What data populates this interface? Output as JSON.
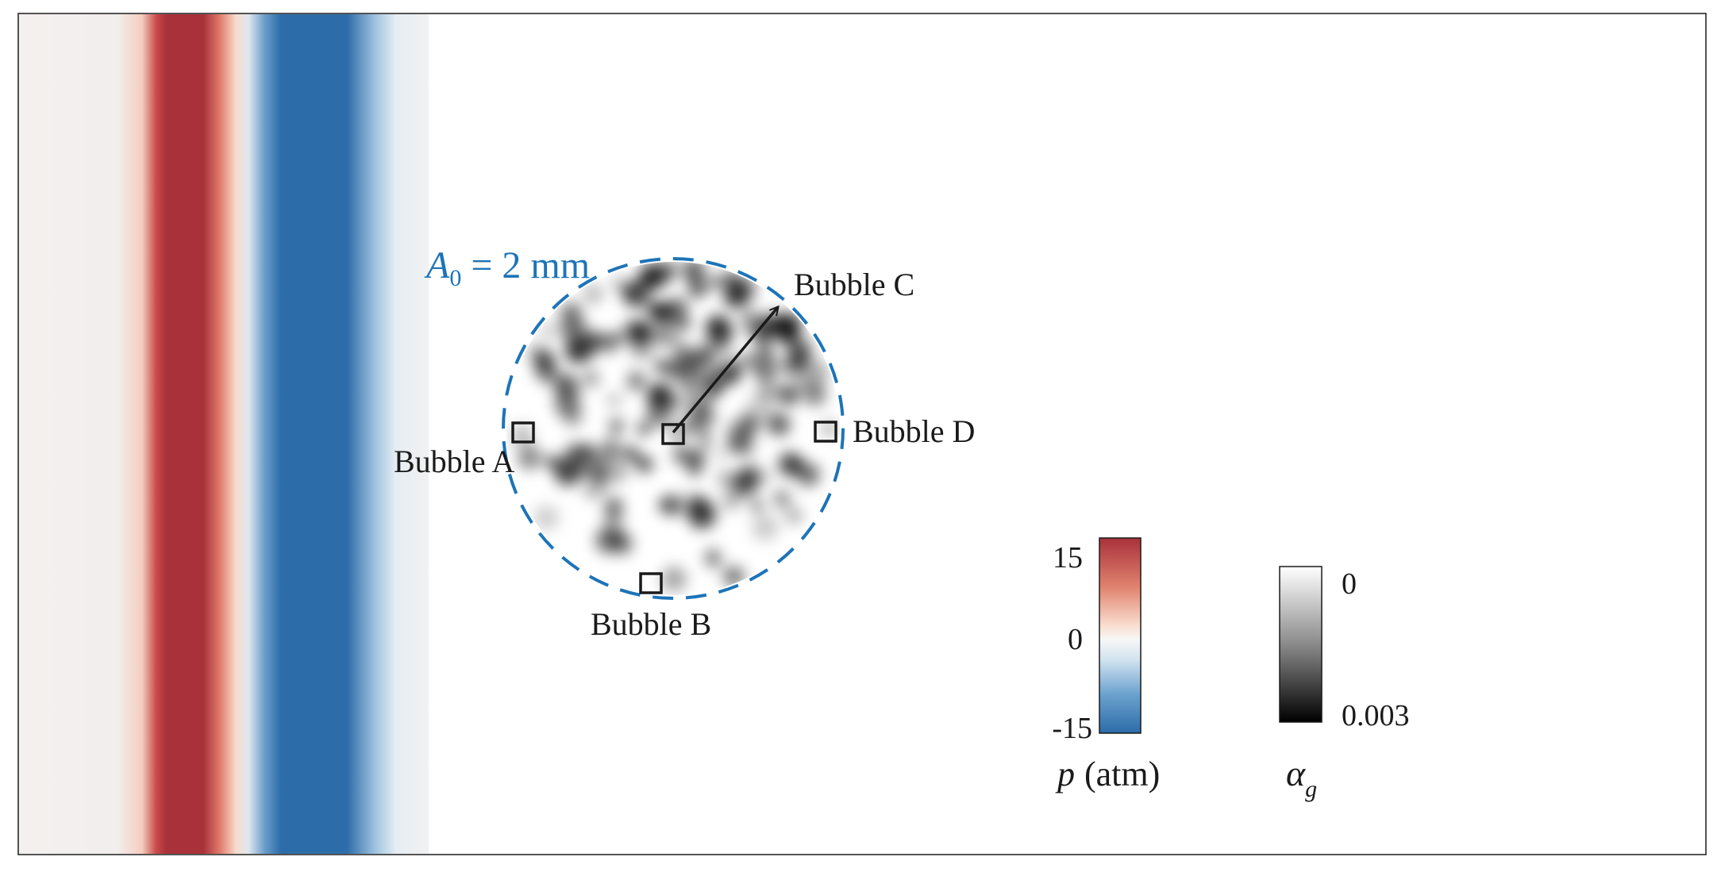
{
  "annotation": {
    "amplitude_symbol": "A",
    "amplitude_subscript": "0",
    "amplitude_rest": "= 2 mm"
  },
  "bubbles": {
    "a": "Bubble A",
    "b": "Bubble B",
    "c": "Bubble C",
    "d": "Bubble D"
  },
  "pressure_colorbar": {
    "ticks": [
      "15",
      "0",
      "-15"
    ],
    "label_symbol": "p",
    "label_unit": "(atm)",
    "colors": {
      "high": "#a8313a",
      "mid": "#f7f7f7",
      "low": "#2c6ca8"
    }
  },
  "gas_colorbar": {
    "ticks": [
      "0",
      "0.003"
    ],
    "label_symbol": "α",
    "label_subscript": "g"
  },
  "colors": {
    "annotation": "#1d74b8",
    "wave_red": "#a8313a",
    "wave_blue": "#2c6ca8",
    "background_gray": "#f0efee"
  }
}
